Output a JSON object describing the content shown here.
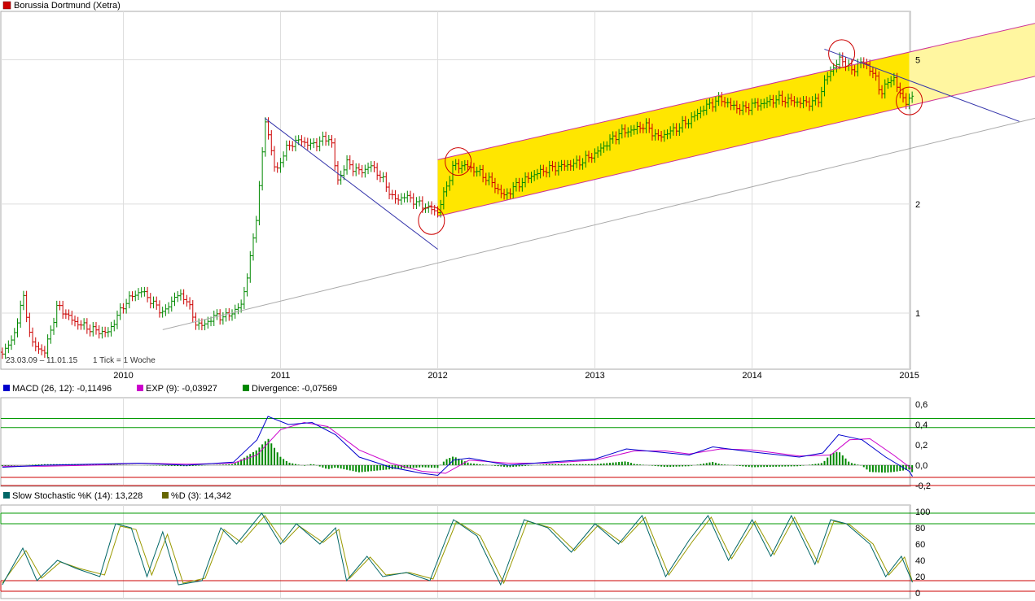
{
  "chart_data": [
    {
      "type": "candlestick",
      "title": "Borussia Dortmund (Xetra)",
      "title_color": "#cc0000",
      "range_label": "23.03.09 – 11.01.15",
      "tick_label": "1 Tick = 1 Woche",
      "log_scale": true,
      "ylim": [
        0.7,
        6.8
      ],
      "y_ticks": [
        1,
        2,
        5
      ],
      "y_tick_labels": [
        "1",
        "2",
        "5"
      ],
      "x_ticks": [
        2010,
        2011,
        2012,
        2013,
        2014,
        2015
      ],
      "x_tick_labels": [
        "2010",
        "2011",
        "2012",
        "2013",
        "2014",
        "2015"
      ],
      "xlim": [
        2009.22,
        2015.8
      ],
      "up_color": "#008800",
      "down_color": "#cc0000",
      "price_points": [
        [
          2009.23,
          0.78
        ],
        [
          2009.3,
          0.85
        ],
        [
          2009.36,
          1.12
        ],
        [
          2009.42,
          0.82
        ],
        [
          2009.5,
          0.78
        ],
        [
          2009.58,
          1.05
        ],
        [
          2009.68,
          0.95
        ],
        [
          2009.8,
          0.9
        ],
        [
          2009.9,
          0.88
        ],
        [
          2010.0,
          1.05
        ],
        [
          2010.06,
          1.12
        ],
        [
          2010.12,
          1.15
        ],
        [
          2010.2,
          1.05
        ],
        [
          2010.26,
          1.0
        ],
        [
          2010.33,
          1.12
        ],
        [
          2010.4,
          1.1
        ],
        [
          2010.45,
          0.95
        ],
        [
          2010.5,
          0.92
        ],
        [
          2010.58,
          0.98
        ],
        [
          2010.66,
          0.98
        ],
        [
          2010.75,
          1.05
        ],
        [
          2010.8,
          1.35
        ],
        [
          2010.84,
          1.75
        ],
        [
          2010.88,
          2.6
        ],
        [
          2010.9,
          3.45
        ],
        [
          2010.93,
          3.0
        ],
        [
          2010.97,
          2.4
        ],
        [
          2011.0,
          2.65
        ],
        [
          2011.05,
          2.9
        ],
        [
          2011.12,
          3.0
        ],
        [
          2011.2,
          2.9
        ],
        [
          2011.26,
          3.0
        ],
        [
          2011.32,
          3.05
        ],
        [
          2011.36,
          2.3
        ],
        [
          2011.42,
          2.6
        ],
        [
          2011.5,
          2.45
        ],
        [
          2011.58,
          2.55
        ],
        [
          2011.66,
          2.3
        ],
        [
          2011.72,
          2.05
        ],
        [
          2011.8,
          2.1
        ],
        [
          2011.88,
          2.0
        ],
        [
          2011.94,
          1.95
        ],
        [
          2012.0,
          1.9
        ],
        [
          2012.05,
          2.2
        ],
        [
          2012.1,
          2.55
        ],
        [
          2012.18,
          2.55
        ],
        [
          2012.26,
          2.45
        ],
        [
          2012.34,
          2.3
        ],
        [
          2012.42,
          2.1
        ],
        [
          2012.5,
          2.25
        ],
        [
          2012.6,
          2.4
        ],
        [
          2012.7,
          2.5
        ],
        [
          2012.8,
          2.55
        ],
        [
          2012.9,
          2.6
        ],
        [
          2013.0,
          2.75
        ],
        [
          2013.08,
          2.95
        ],
        [
          2013.16,
          3.15
        ],
        [
          2013.24,
          3.2
        ],
        [
          2013.32,
          3.3
        ],
        [
          2013.4,
          3.05
        ],
        [
          2013.5,
          3.2
        ],
        [
          2013.6,
          3.4
        ],
        [
          2013.7,
          3.7
        ],
        [
          2013.8,
          3.9
        ],
        [
          2013.86,
          3.75
        ],
        [
          2013.94,
          3.65
        ],
        [
          2014.0,
          3.75
        ],
        [
          2014.08,
          3.8
        ],
        [
          2014.16,
          3.9
        ],
        [
          2014.24,
          3.85
        ],
        [
          2014.34,
          3.8
        ],
        [
          2014.42,
          3.85
        ],
        [
          2014.46,
          4.35
        ],
        [
          2014.52,
          4.8
        ],
        [
          2014.56,
          5.0
        ],
        [
          2014.6,
          4.9
        ],
        [
          2014.64,
          4.6
        ],
        [
          2014.68,
          4.95
        ],
        [
          2014.74,
          4.8
        ],
        [
          2014.78,
          4.5
        ],
        [
          2014.82,
          4.05
        ],
        [
          2014.86,
          4.3
        ],
        [
          2014.9,
          4.5
        ],
        [
          2014.94,
          4.0
        ],
        [
          2014.98,
          3.85
        ],
        [
          2015.02,
          3.9
        ]
      ],
      "trend_lines": [
        {
          "name": "downtrend",
          "color": "#3333aa",
          "from": [
            2010.9,
            3.45
          ],
          "to": [
            2012.0,
            1.5
          ]
        },
        {
          "name": "long-support",
          "color": "#aaaaaa",
          "from": [
            2010.25,
            0.9
          ],
          "to": [
            2015.8,
            3.45
          ]
        },
        {
          "name": "channel-upper",
          "color": "#cc3399",
          "from": [
            2012.0,
            2.65
          ],
          "to": [
            2015.8,
            6.3
          ]
        },
        {
          "name": "channel-lower",
          "color": "#cc3399",
          "from": [
            2012.0,
            1.85
          ],
          "to": [
            2015.8,
            4.5
          ]
        },
        {
          "name": "decline-2014",
          "color": "#3333aa",
          "from": [
            2014.46,
            5.35
          ],
          "to": [
            2015.7,
            3.38
          ]
        }
      ],
      "channel_fill": "#ffe600",
      "channel_fill_ext": "#fff6a0",
      "highlight_circles": [
        [
          2012.13,
          2.62
        ],
        [
          2011.96,
          1.8
        ],
        [
          2014.57,
          5.2
        ],
        [
          2015.0,
          3.85
        ]
      ]
    },
    {
      "type": "line",
      "panel": "macd",
      "legend": [
        {
          "name": "MACD (26, 12): -0,11496",
          "color": "#0000cc"
        },
        {
          "name": "EXP (9): -0,03927",
          "color": "#cc00cc"
        },
        {
          "name": "Divergence: -0,07569",
          "color": "#008800"
        }
      ],
      "ylim": [
        -0.2,
        0.6
      ],
      "y_ticks": [
        0.6,
        0.4,
        0.2,
        0.0,
        -0.2
      ],
      "y_tick_labels": [
        "0,6",
        "0,4",
        "0,2",
        "0,0",
        "-0,2"
      ],
      "upper_band": [
        0.37,
        0.46
      ],
      "lower_band": [
        -0.12,
        -0.2
      ],
      "macd": [
        [
          2009.23,
          -0.02
        ],
        [
          2009.5,
          0.0
        ],
        [
          2009.8,
          0.01
        ],
        [
          2010.1,
          0.02
        ],
        [
          2010.4,
          0.0
        ],
        [
          2010.7,
          0.03
        ],
        [
          2010.85,
          0.25
        ],
        [
          2010.92,
          0.48
        ],
        [
          2011.05,
          0.4
        ],
        [
          2011.2,
          0.42
        ],
        [
          2011.35,
          0.3
        ],
        [
          2011.5,
          0.08
        ],
        [
          2011.7,
          -0.02
        ],
        [
          2011.9,
          -0.08
        ],
        [
          2012.0,
          -0.1
        ],
        [
          2012.1,
          0.05
        ],
        [
          2012.2,
          0.07
        ],
        [
          2012.45,
          0.0
        ],
        [
          2012.7,
          0.03
        ],
        [
          2013.0,
          0.06
        ],
        [
          2013.2,
          0.16
        ],
        [
          2013.4,
          0.13
        ],
        [
          2013.6,
          0.1
        ],
        [
          2013.75,
          0.18
        ],
        [
          2014.0,
          0.13
        ],
        [
          2014.3,
          0.08
        ],
        [
          2014.45,
          0.12
        ],
        [
          2014.55,
          0.3
        ],
        [
          2014.7,
          0.25
        ],
        [
          2014.85,
          0.08
        ],
        [
          2015.0,
          -0.06
        ],
        [
          2015.02,
          -0.11
        ]
      ],
      "signal": [
        [
          2009.23,
          -0.01
        ],
        [
          2009.5,
          -0.01
        ],
        [
          2009.8,
          0.0
        ],
        [
          2010.1,
          0.02
        ],
        [
          2010.4,
          0.01
        ],
        [
          2010.7,
          0.02
        ],
        [
          2010.85,
          0.1
        ],
        [
          2011.0,
          0.35
        ],
        [
          2011.15,
          0.42
        ],
        [
          2011.3,
          0.38
        ],
        [
          2011.5,
          0.15
        ],
        [
          2011.7,
          0.02
        ],
        [
          2011.9,
          -0.06
        ],
        [
          2012.05,
          -0.08
        ],
        [
          2012.2,
          0.05
        ],
        [
          2012.45,
          0.02
        ],
        [
          2012.7,
          0.02
        ],
        [
          2013.0,
          0.05
        ],
        [
          2013.25,
          0.14
        ],
        [
          2013.45,
          0.14
        ],
        [
          2013.6,
          0.11
        ],
        [
          2013.8,
          0.16
        ],
        [
          2014.0,
          0.15
        ],
        [
          2014.3,
          0.09
        ],
        [
          2014.5,
          0.1
        ],
        [
          2014.62,
          0.25
        ],
        [
          2014.75,
          0.26
        ],
        [
          2014.9,
          0.1
        ],
        [
          2015.02,
          -0.04
        ]
      ]
    },
    {
      "type": "line",
      "panel": "stochastic",
      "legend": [
        {
          "name": "Slow Stochastic %K (14): 13,228",
          "color": "#006666"
        },
        {
          "name": "%D (3): 14,342",
          "color": "#666600"
        }
      ],
      "ylim": [
        0,
        100
      ],
      "y_ticks": [
        100,
        80,
        60,
        40,
        20,
        0
      ],
      "y_tick_labels": [
        "100",
        "80",
        "60",
        "40",
        "20",
        "0"
      ],
      "upper_band": [
        85,
        98
      ],
      "lower_band": [
        2,
        15
      ],
      "k": [
        [
          2009.23,
          10
        ],
        [
          2009.36,
          55
        ],
        [
          2009.45,
          15
        ],
        [
          2009.58,
          40
        ],
        [
          2009.7,
          30
        ],
        [
          2009.85,
          20
        ],
        [
          2009.95,
          85
        ],
        [
          2010.05,
          80
        ],
        [
          2010.15,
          20
        ],
        [
          2010.25,
          75
        ],
        [
          2010.35,
          10
        ],
        [
          2010.5,
          15
        ],
        [
          2010.62,
          80
        ],
        [
          2010.72,
          60
        ],
        [
          2010.88,
          98
        ],
        [
          2011.0,
          60
        ],
        [
          2011.1,
          85
        ],
        [
          2011.25,
          60
        ],
        [
          2011.35,
          80
        ],
        [
          2011.42,
          15
        ],
        [
          2011.55,
          45
        ],
        [
          2011.65,
          20
        ],
        [
          2011.8,
          25
        ],
        [
          2011.95,
          15
        ],
        [
          2012.1,
          90
        ],
        [
          2012.25,
          70
        ],
        [
          2012.4,
          10
        ],
        [
          2012.55,
          90
        ],
        [
          2012.7,
          80
        ],
        [
          2012.85,
          50
        ],
        [
          2013.0,
          85
        ],
        [
          2013.15,
          60
        ],
        [
          2013.3,
          95
        ],
        [
          2013.45,
          20
        ],
        [
          2013.6,
          65
        ],
        [
          2013.72,
          95
        ],
        [
          2013.85,
          40
        ],
        [
          2014.0,
          90
        ],
        [
          2014.12,
          45
        ],
        [
          2014.25,
          95
        ],
        [
          2014.4,
          35
        ],
        [
          2014.5,
          90
        ],
        [
          2014.6,
          85
        ],
        [
          2014.75,
          60
        ],
        [
          2014.85,
          20
        ],
        [
          2014.95,
          45
        ],
        [
          2015.02,
          13
        ]
      ],
      "d": [
        [
          2009.23,
          12
        ],
        [
          2009.38,
          52
        ],
        [
          2009.48,
          18
        ],
        [
          2009.6,
          38
        ],
        [
          2009.72,
          30
        ],
        [
          2009.88,
          22
        ],
        [
          2009.98,
          82
        ],
        [
          2010.08,
          78
        ],
        [
          2010.18,
          22
        ],
        [
          2010.28,
          72
        ],
        [
          2010.38,
          12
        ],
        [
          2010.52,
          18
        ],
        [
          2010.64,
          78
        ],
        [
          2010.75,
          62
        ],
        [
          2010.9,
          95
        ],
        [
          2011.02,
          62
        ],
        [
          2011.12,
          82
        ],
        [
          2011.27,
          62
        ],
        [
          2011.37,
          78
        ],
        [
          2011.44,
          18
        ],
        [
          2011.57,
          44
        ],
        [
          2011.67,
          22
        ],
        [
          2011.82,
          25
        ],
        [
          2011.97,
          17
        ],
        [
          2012.12,
          88
        ],
        [
          2012.27,
          70
        ],
        [
          2012.42,
          12
        ],
        [
          2012.57,
          88
        ],
        [
          2012.72,
          80
        ],
        [
          2012.87,
          52
        ],
        [
          2013.02,
          83
        ],
        [
          2013.17,
          62
        ],
        [
          2013.32,
          93
        ],
        [
          2013.47,
          22
        ],
        [
          2013.62,
          63
        ],
        [
          2013.74,
          93
        ],
        [
          2013.87,
          42
        ],
        [
          2014.02,
          88
        ],
        [
          2014.14,
          47
        ],
        [
          2014.27,
          93
        ],
        [
          2014.42,
          37
        ],
        [
          2014.52,
          88
        ],
        [
          2014.62,
          84
        ],
        [
          2014.77,
          60
        ],
        [
          2014.87,
          22
        ],
        [
          2014.97,
          44
        ],
        [
          2015.02,
          14
        ]
      ]
    }
  ]
}
